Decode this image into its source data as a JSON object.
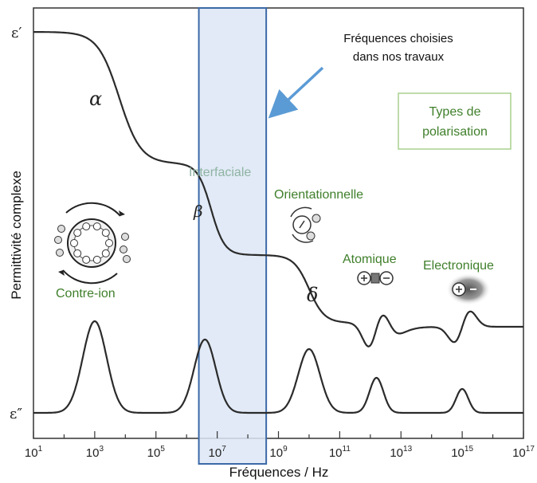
{
  "chart_data": {
    "type": "line",
    "x_scale": "log",
    "xlabel": "Fréquences / Hz",
    "ylabel": "Permittivité complexe",
    "x_ticks": [
      {
        "base": "10",
        "exp": "1",
        "value": 1
      },
      {
        "base": "10",
        "exp": "3",
        "value": 3
      },
      {
        "base": "10",
        "exp": "5",
        "value": 5
      },
      {
        "base": "10",
        "exp": "7",
        "value": 7
      },
      {
        "base": "10",
        "exp": "9",
        "value": 9
      },
      {
        "base": "10",
        "exp": "11",
        "value": 11
      },
      {
        "base": "10",
        "exp": "13",
        "value": 13
      },
      {
        "base": "10",
        "exp": "15",
        "value": 15
      },
      {
        "base": "10",
        "exp": "17",
        "value": 17
      }
    ],
    "xlim_log10": [
      1,
      17
    ],
    "y_ticks": [
      {
        "label": "ε′",
        "level": "high"
      },
      {
        "label": "ε″",
        "level": "low"
      }
    ],
    "series": [
      {
        "name": "ε′",
        "steps": [
          {
            "label": "α",
            "center_log10": 3.8
          },
          {
            "label": "β",
            "center_log10": 6.8
          },
          {
            "label": "δ",
            "center_log10": 10.0
          }
        ],
        "resonances_log10": [
          12.2,
          15.0
        ]
      },
      {
        "name": "ε″",
        "peaks_log10": [
          3.0,
          6.6,
          10.0,
          12.2,
          15.0
        ]
      }
    ],
    "highlight_band_log10": [
      6.4,
      8.6
    ],
    "annotations": {
      "choice_note": [
        "Fréquences choisies",
        "dans nos travaux"
      ],
      "types_box": [
        "Types de",
        "polarisation"
      ],
      "interfaciale": "Interfaciale",
      "orientationnelle": "Orientationnelle",
      "atomique": "Atomique",
      "electronique": "Electronique",
      "contre_ion": "Contre-ion"
    },
    "grid": false,
    "colors": {
      "curve": "#2b2b2b",
      "band_fill": "#dce6f4",
      "band_stroke": "#3c6aa8",
      "arrow": "#5b9bd5",
      "label_green": "#3f7f2a",
      "interfaciale": "#8fb3a2",
      "box_border": "#a9d18e"
    }
  }
}
